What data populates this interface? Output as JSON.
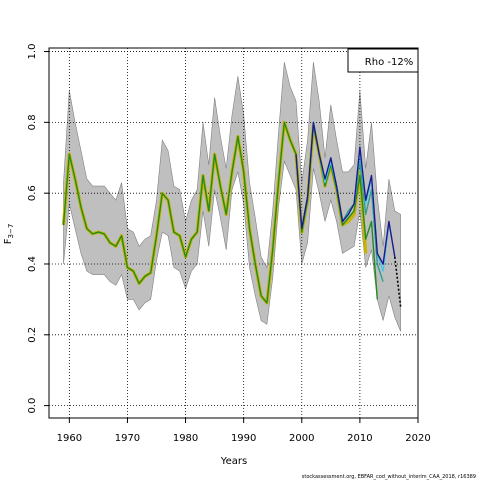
{
  "chart_data": {
    "type": "line",
    "xlabel": "Years",
    "ylabel": "F",
    "ylabel_sub": "3−7",
    "xlim": [
      1956.5,
      2020
    ],
    "ylim": [
      -0.035,
      1.01
    ],
    "xticks": [
      1960,
      1970,
      1980,
      1990,
      2000,
      2010,
      2020
    ],
    "yticks": [
      0.0,
      0.2,
      0.4,
      0.6,
      0.8,
      1.0
    ],
    "ytick_labels": [
      "0.0",
      "0.2",
      "0.4",
      "0.6",
      "0.8",
      "1.0"
    ],
    "grid": true,
    "legend_text": "Rho -12%",
    "footer": "stockassessment.org, EBFAR_cod_without_interim_CAA_2018, r16389",
    "band": {
      "color": "#bfbfbf",
      "x": [
        1959,
        1960,
        1961,
        1962,
        1963,
        1964,
        1965,
        1966,
        1967,
        1968,
        1969,
        1970,
        1971,
        1972,
        1973,
        1974,
        1975,
        1976,
        1977,
        1978,
        1979,
        1980,
        1981,
        1982,
        1983,
        1984,
        1985,
        1986,
        1987,
        1988,
        1989,
        1990,
        1991,
        1992,
        1993,
        1994,
        1995,
        1996,
        1997,
        1998,
        1999,
        2000,
        2001,
        2002,
        2003,
        2004,
        2005,
        2006,
        2007,
        2008,
        2009,
        2010,
        2011,
        2012,
        2013,
        2014,
        2015,
        2016,
        2017
      ],
      "upper": [
        0.63,
        0.89,
        0.8,
        0.72,
        0.64,
        0.62,
        0.62,
        0.62,
        0.6,
        0.58,
        0.63,
        0.5,
        0.49,
        0.45,
        0.47,
        0.48,
        0.58,
        0.75,
        0.72,
        0.62,
        0.61,
        0.52,
        0.58,
        0.61,
        0.8,
        0.68,
        0.87,
        0.76,
        0.67,
        0.82,
        0.93,
        0.82,
        0.63,
        0.53,
        0.42,
        0.39,
        0.55,
        0.77,
        0.97,
        0.9,
        0.86,
        0.63,
        0.75,
        0.97,
        0.86,
        0.7,
        0.85,
        0.75,
        0.66,
        0.66,
        0.68,
        0.89,
        0.67,
        0.8,
        0.59,
        0.45,
        0.64,
        0.55,
        0.54
      ],
      "lower": [
        0.4,
        0.57,
        0.5,
        0.43,
        0.38,
        0.37,
        0.37,
        0.37,
        0.35,
        0.34,
        0.37,
        0.3,
        0.3,
        0.27,
        0.29,
        0.3,
        0.41,
        0.49,
        0.48,
        0.39,
        0.38,
        0.33,
        0.38,
        0.4,
        0.55,
        0.45,
        0.61,
        0.53,
        0.44,
        0.61,
        0.66,
        0.57,
        0.39,
        0.31,
        0.24,
        0.23,
        0.36,
        0.56,
        0.69,
        0.65,
        0.61,
        0.4,
        0.46,
        0.67,
        0.6,
        0.52,
        0.58,
        0.52,
        0.43,
        0.44,
        0.45,
        0.55,
        0.39,
        0.44,
        0.3,
        0.24,
        0.31,
        0.25,
        0.21
      ]
    },
    "series": [
      {
        "color": "#c8b400",
        "width": 3.2,
        "x": [
          1959,
          1960,
          1961,
          1962,
          1963,
          1964,
          1965,
          1966,
          1967,
          1968,
          1969,
          1970,
          1971,
          1972,
          1973,
          1974,
          1975,
          1976,
          1977,
          1978,
          1979,
          1980,
          1981,
          1982,
          1983,
          1984,
          1985,
          1986,
          1987,
          1988,
          1989,
          1990,
          1991,
          1992,
          1993,
          1994,
          1995,
          1996,
          1997,
          1998,
          1999,
          2000,
          2001,
          2002,
          2003,
          2004,
          2005,
          2006,
          2007,
          2008,
          2009,
          2010,
          2011
        ],
        "y": [
          0.51,
          0.71,
          0.64,
          0.56,
          0.5,
          0.485,
          0.49,
          0.485,
          0.46,
          0.45,
          0.48,
          0.39,
          0.38,
          0.345,
          0.365,
          0.375,
          0.48,
          0.6,
          0.58,
          0.49,
          0.48,
          0.42,
          0.47,
          0.49,
          0.65,
          0.55,
          0.71,
          0.62,
          0.54,
          0.66,
          0.76,
          0.66,
          0.5,
          0.4,
          0.31,
          0.29,
          0.44,
          0.63,
          0.8,
          0.75,
          0.71,
          0.49,
          0.58,
          0.79,
          0.71,
          0.62,
          0.68,
          0.61,
          0.51,
          0.52,
          0.54,
          0.66,
          0.43
        ]
      },
      {
        "color": "#228b22",
        "width": 1.4,
        "x": [
          1959,
          1960,
          1961,
          1962,
          1963,
          1964,
          1965,
          1966,
          1967,
          1968,
          1969,
          1970,
          1971,
          1972,
          1973,
          1974,
          1975,
          1976,
          1977,
          1978,
          1979,
          1980,
          1981,
          1982,
          1983,
          1984,
          1985,
          1986,
          1987,
          1988,
          1989,
          1990,
          1991,
          1992,
          1993,
          1994,
          1995,
          1996,
          1997,
          1998,
          1999,
          2000,
          2001,
          2002,
          2003,
          2004,
          2005,
          2006,
          2007,
          2008,
          2009,
          2010,
          2011,
          2012,
          2013
        ],
        "y": [
          0.51,
          0.71,
          0.64,
          0.56,
          0.5,
          0.485,
          0.49,
          0.485,
          0.46,
          0.45,
          0.48,
          0.39,
          0.38,
          0.345,
          0.365,
          0.375,
          0.48,
          0.6,
          0.58,
          0.49,
          0.48,
          0.42,
          0.47,
          0.49,
          0.65,
          0.55,
          0.71,
          0.62,
          0.54,
          0.66,
          0.76,
          0.66,
          0.5,
          0.4,
          0.31,
          0.29,
          0.44,
          0.63,
          0.8,
          0.75,
          0.71,
          0.49,
          0.58,
          0.79,
          0.71,
          0.62,
          0.68,
          0.61,
          0.51,
          0.53,
          0.55,
          0.65,
          0.47,
          0.52,
          0.3
        ]
      },
      {
        "color": "#2f9e8f",
        "width": 1.4,
        "x": [
          1999,
          2000,
          2001,
          2002,
          2003,
          2004,
          2005,
          2006,
          2007,
          2008,
          2009,
          2010,
          2011,
          2012,
          2013,
          2014
        ],
        "y": [
          0.71,
          0.5,
          0.59,
          0.8,
          0.71,
          0.63,
          0.69,
          0.62,
          0.52,
          0.55,
          0.57,
          0.69,
          0.54,
          0.61,
          0.4,
          0.35
        ]
      },
      {
        "color": "#48c7e8",
        "width": 1.4,
        "x": [
          1999,
          2000,
          2001,
          2002,
          2003,
          2004,
          2005,
          2006,
          2007,
          2008,
          2009,
          2010,
          2011,
          2012,
          2013,
          2014,
          2015
        ],
        "y": [
          0.71,
          0.5,
          0.59,
          0.8,
          0.71,
          0.63,
          0.69,
          0.62,
          0.52,
          0.54,
          0.57,
          0.72,
          0.57,
          0.64,
          0.43,
          0.38,
          0.51
        ]
      },
      {
        "color": "#1a1a8c",
        "width": 1.4,
        "x": [
          1999,
          2000,
          2001,
          2002,
          2003,
          2004,
          2005,
          2006,
          2007,
          2008,
          2009,
          2010,
          2011,
          2012,
          2013,
          2014,
          2015,
          2016
        ],
        "y": [
          0.71,
          0.5,
          0.59,
          0.8,
          0.71,
          0.64,
          0.7,
          0.62,
          0.52,
          0.54,
          0.57,
          0.73,
          0.58,
          0.65,
          0.43,
          0.4,
          0.52,
          0.42
        ]
      },
      {
        "color": "#000000",
        "width": 1.6,
        "dash": "2,2",
        "x": [
          2016,
          2017
        ],
        "y": [
          0.42,
          0.28
        ]
      }
    ]
  }
}
